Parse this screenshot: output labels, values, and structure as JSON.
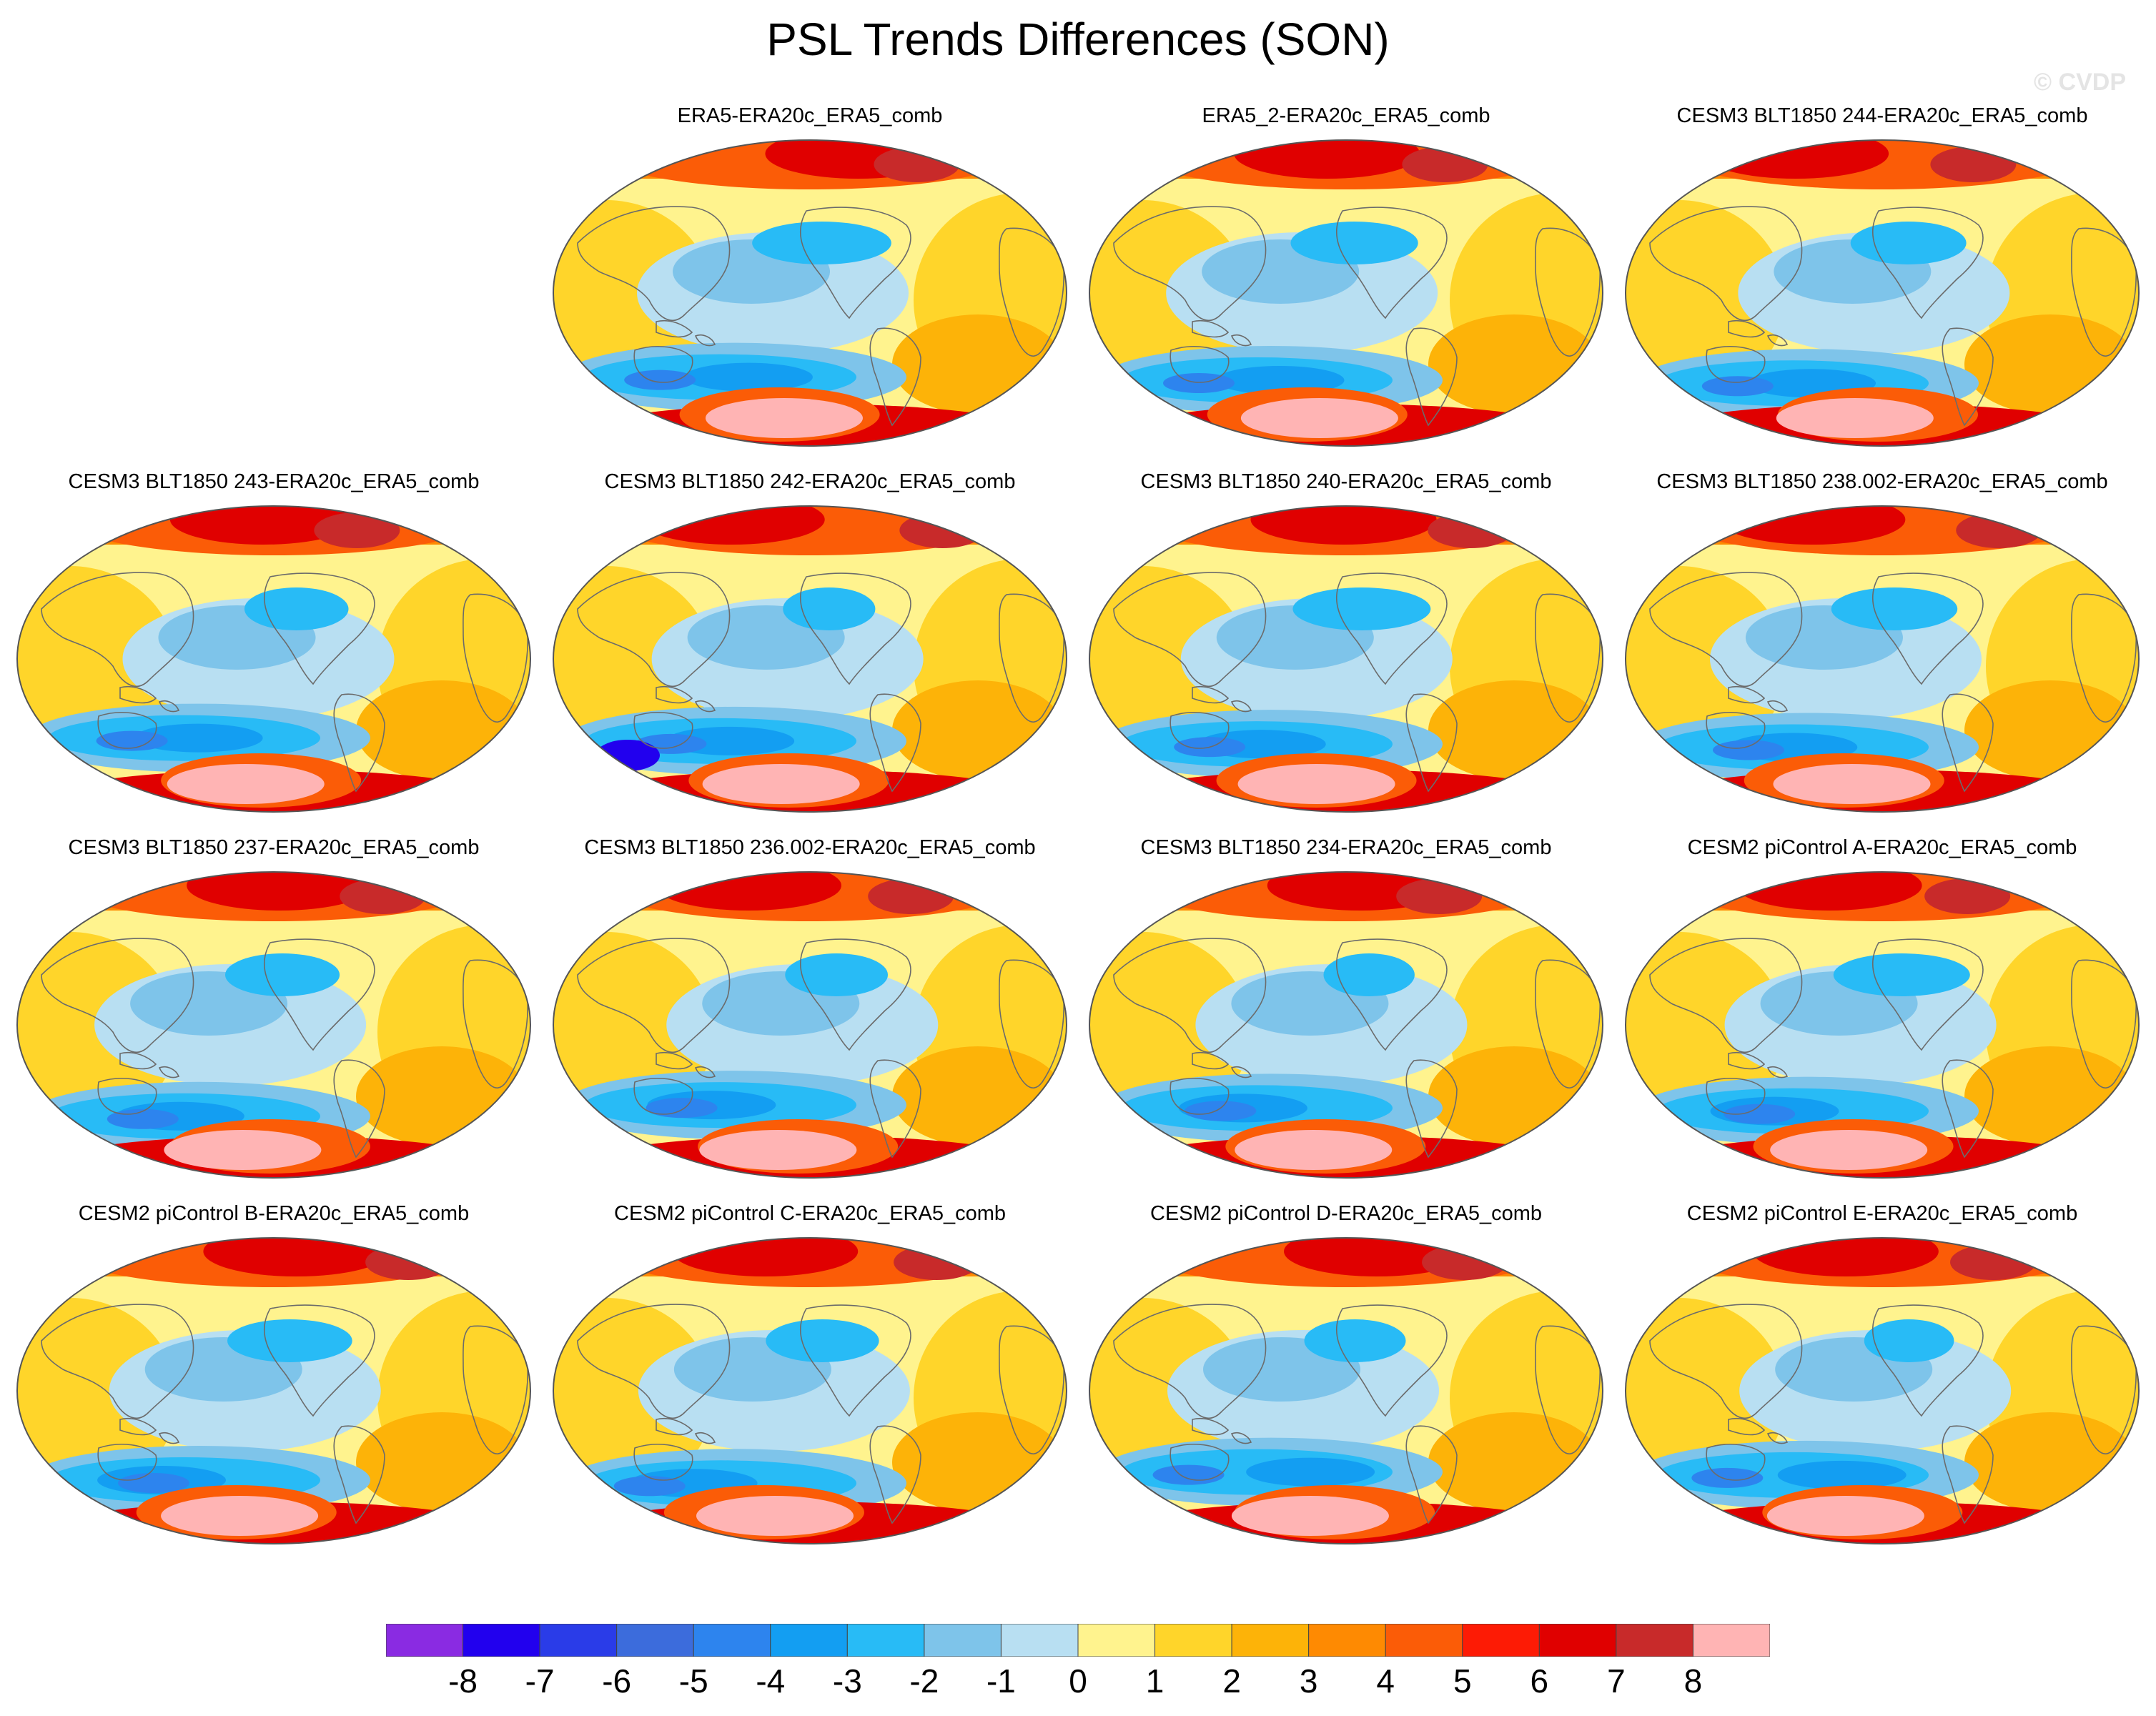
{
  "title": "PSL Trends Differences (SON)",
  "watermark": "© CVDP",
  "chart_data": {
    "type": "heatmap",
    "title": "PSL Trends Differences (SON)",
    "projection": "robinson-like world maps, 15 panels",
    "panels": [
      "ERA5-ERA20c_ERA5_comb",
      "ERA5_2-ERA20c_ERA5_comb",
      "CESM3 BLT1850 244-ERA20c_ERA5_comb",
      "CESM3 BLT1850 243-ERA20c_ERA5_comb",
      "CESM3 BLT1850 242-ERA20c_ERA5_comb",
      "CESM3 BLT1850 240-ERA20c_ERA5_comb",
      "CESM3 BLT1850 238.002-ERA20c_ERA5_comb",
      "CESM3 BLT1850 237-ERA20c_ERA5_comb",
      "CESM3 BLT1850 236.002-ERA20c_ERA5_comb",
      "CESM3 BLT1850 234-ERA20c_ERA5_comb",
      "CESM2 piControl A-ERA20c_ERA5_comb",
      "CESM2 piControl B-ERA20c_ERA5_comb",
      "CESM2 piControl C-ERA20c_ERA5_comb",
      "CESM2 piControl D-ERA20c_ERA5_comb",
      "CESM2 piControl E-ERA20c_ERA5_comb"
    ],
    "colorbar": {
      "levels": [
        "-8",
        "-7",
        "-6",
        "-5",
        "-4",
        "-3",
        "-2",
        "-1",
        "0",
        "1",
        "2",
        "3",
        "4",
        "5",
        "6",
        "7",
        "8"
      ],
      "colors": [
        "#8a2be2",
        "#2200ee",
        "#2a3ce8",
        "#3c6cdc",
        "#2d84ee",
        "#139ef2",
        "#28bbf6",
        "#7ec4ea",
        "#b8dff2",
        "#fff38e",
        "#ffd52a",
        "#fdb308",
        "#fe8a02",
        "#fb5c07",
        "#fd1b05",
        "#e00000",
        "#c82a2a",
        "#ffb4b4"
      ]
    }
  },
  "colors": {
    "coastline": "#6b6b6b",
    "arctic_red": "#e3161a",
    "antarctic_pink": "#ffb4b4",
    "base_yellow": "#fff38e",
    "base_orange": "#fdc42a"
  }
}
